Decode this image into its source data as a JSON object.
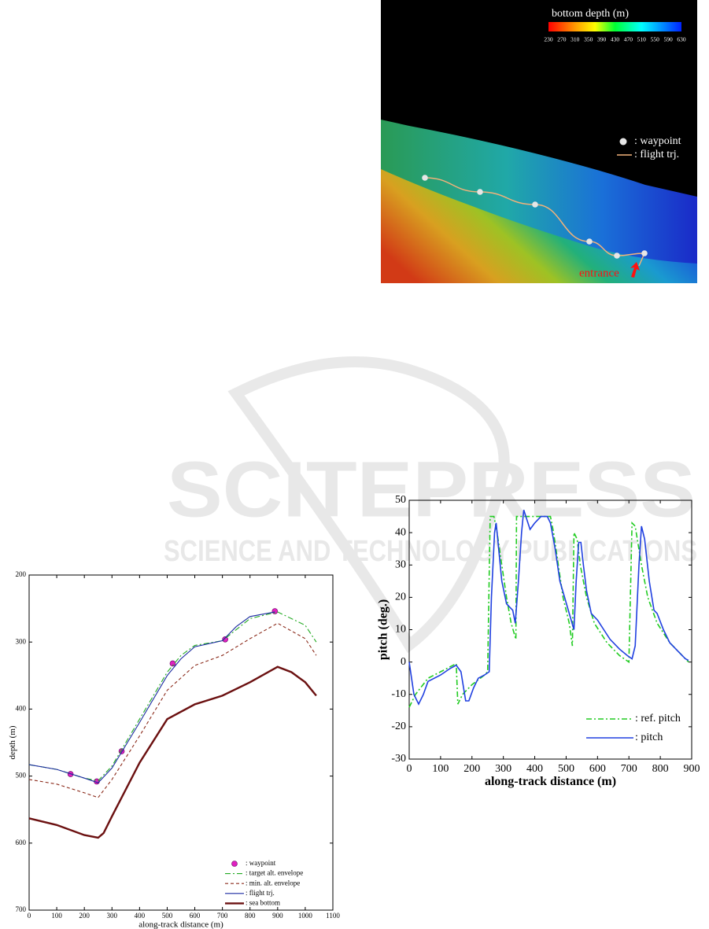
{
  "watermark": {
    "line1": "SCITEPRESS",
    "line2": "SCIENCE AND TECHNOLOGY PUBLICATIONS"
  },
  "chart_data": [
    {
      "type": "terrain",
      "title": "bottom depth (m)",
      "clim": [
        230,
        630
      ],
      "cticks": [
        230,
        270,
        310,
        350,
        390,
        430,
        470,
        510,
        550,
        590,
        630
      ],
      "series": [
        {
          "name": ": waypoint",
          "color": "#e6e6e6"
        },
        {
          "name": ": flight trj.",
          "color": "#f2b27a"
        }
      ],
      "annotation": "entrance"
    },
    {
      "type": "line",
      "xlabel": "along-track distance (m)",
      "ylabel": "pitch (deg.)",
      "xlim": [
        0,
        900
      ],
      "ylim": [
        -30,
        50
      ],
      "xticks": [
        0,
        100,
        200,
        300,
        400,
        500,
        600,
        700,
        800,
        900
      ],
      "yticks": [
        -30,
        -20,
        -10,
        0,
        10,
        20,
        30,
        40,
        50
      ],
      "legend": "lower right",
      "series": [
        {
          "name": ": ref. pitch",
          "color": "#22cc22",
          "style": "dashdot",
          "x": [
            0,
            20,
            60,
            100,
            140,
            150,
            155,
            170,
            200,
            240,
            250,
            258,
            270,
            280,
            295,
            310,
            325,
            340,
            342,
            450,
            460,
            475,
            490,
            510,
            520,
            525,
            535,
            545,
            565,
            590,
            630,
            670,
            700,
            710,
            720,
            740,
            760,
            790,
            830,
            870,
            890
          ],
          "values": [
            -14,
            -10,
            -5,
            -3,
            -1,
            -0.5,
            -13,
            -10,
            -7,
            -4,
            -3,
            45,
            45,
            40,
            30,
            20,
            12,
            7,
            45,
            45,
            40,
            30,
            20,
            12,
            5,
            40,
            38,
            30,
            20,
            12,
            6,
            2,
            0,
            43,
            42,
            30,
            20,
            12,
            6,
            2,
            0
          ]
        },
        {
          "name": ": pitch",
          "color": "#2040e0",
          "style": "solid",
          "x": [
            0,
            15,
            30,
            45,
            60,
            100,
            130,
            150,
            165,
            180,
            190,
            205,
            220,
            240,
            255,
            262,
            272,
            277,
            285,
            295,
            310,
            320,
            330,
            338,
            348,
            358,
            365,
            375,
            385,
            400,
            420,
            440,
            450,
            465,
            480,
            495,
            510,
            525,
            532,
            540,
            547,
            555,
            565,
            580,
            600,
            620,
            640,
            670,
            695,
            710,
            720,
            732,
            740,
            750,
            765,
            780,
            790,
            810,
            830,
            860,
            880,
            890
          ],
          "values": [
            0,
            -10,
            -13,
            -10,
            -6,
            -4,
            -2,
            -1,
            -3,
            -12,
            -12,
            -8,
            -5,
            -4,
            -3,
            20,
            40,
            43,
            35,
            25,
            18,
            17,
            16,
            12,
            25,
            40,
            47,
            44,
            41,
            43,
            45,
            45,
            43,
            35,
            25,
            20,
            15,
            10,
            25,
            37,
            37,
            30,
            22,
            15,
            13,
            10,
            7,
            4,
            2,
            1,
            5,
            30,
            42,
            38,
            25,
            16,
            15,
            10,
            6,
            3,
            1,
            0.5
          ]
        }
      ]
    },
    {
      "type": "line",
      "xlabel": "along-track distance (m)",
      "ylabel": "depth (m)",
      "xlim": [
        0,
        1100
      ],
      "ylim": [
        200,
        700
      ],
      "y_inverted": true,
      "xticks": [
        0,
        100,
        200,
        300,
        400,
        500,
        600,
        700,
        800,
        900,
        1000,
        1100
      ],
      "yticks": [
        200,
        300,
        400,
        500,
        600,
        700
      ],
      "legend": "lower right",
      "series": [
        {
          "name": ": waypoint",
          "color": "#e020c0",
          "style": "marker",
          "x": [
            150,
            245,
            335,
            520,
            710,
            890
          ],
          "values": [
            497,
            508,
            463,
            332,
            296,
            254
          ]
        },
        {
          "name": ": target alt. envelope",
          "color": "#22aa22",
          "style": "dashdot",
          "x": [
            0,
            100,
            200,
            250,
            300,
            400,
            500,
            550,
            600,
            700,
            800,
            900,
            1000,
            1040
          ],
          "values": [
            483,
            490,
            503,
            507,
            485,
            415,
            345,
            320,
            305,
            298,
            265,
            255,
            275,
            300
          ]
        },
        {
          "name": ": min. alt. envelope",
          "color": "#8b2a1a",
          "style": "dash",
          "x": [
            0,
            100,
            200,
            250,
            300,
            400,
            500,
            600,
            700,
            800,
            900,
            1000,
            1040
          ],
          "values": [
            505,
            512,
            525,
            532,
            505,
            440,
            372,
            335,
            320,
            295,
            272,
            295,
            320
          ]
        },
        {
          "name": ": flight trj.",
          "color": "#1a2aa0",
          "style": "solid",
          "x": [
            0,
            100,
            200,
            250,
            300,
            400,
            500,
            550,
            600,
            700,
            750,
            800,
            890
          ],
          "values": [
            483,
            490,
            503,
            510,
            488,
            420,
            350,
            325,
            307,
            298,
            277,
            262,
            255
          ]
        },
        {
          "name": ": sea bottom",
          "color": "#6b1010",
          "style": "thick",
          "x": [
            0,
            100,
            200,
            250,
            270,
            300,
            400,
            500,
            600,
            700,
            800,
            900,
            950,
            1000,
            1040
          ],
          "values": [
            563,
            573,
            588,
            592,
            585,
            560,
            480,
            415,
            393,
            380,
            360,
            337,
            345,
            360,
            380
          ]
        }
      ]
    }
  ]
}
